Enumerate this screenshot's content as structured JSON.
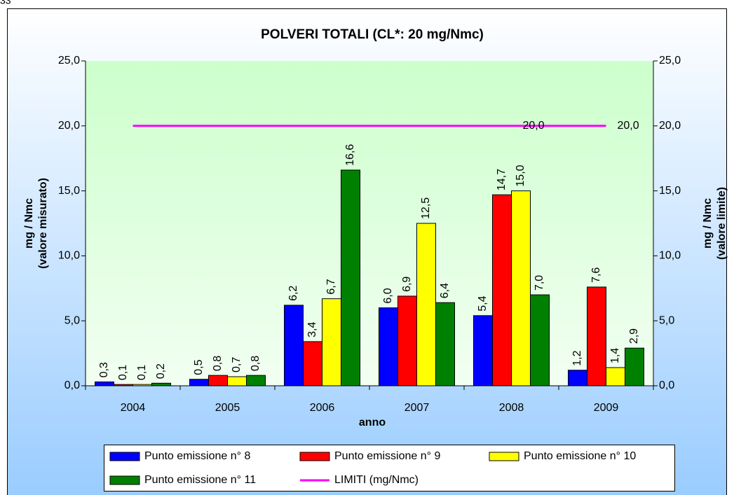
{
  "page_number": "33",
  "chart_data": {
    "type": "bar",
    "title": "POLVERI TOTALI (CL*: 20 mg/Nmc)",
    "x_label": "anno",
    "y_label": [
      "mg / Nmc",
      "(valore misurato)"
    ],
    "y2_label": [
      "mg / Nmc",
      "(valore limite)"
    ],
    "categories": [
      "2004",
      "2005",
      "2006",
      "2007",
      "2008",
      "2009"
    ],
    "series": [
      {
        "name": "Punto emissione n° 8",
        "color": "#0000ff",
        "values": [
          0.3,
          0.5,
          6.2,
          6.0,
          5.4,
          1.2
        ],
        "value_labels": [
          "0,3",
          "0,5",
          "6,2",
          "6,0",
          "5,4",
          "1,2"
        ]
      },
      {
        "name": "Punto emissione n° 9",
        "color": "#ff0000",
        "values": [
          0.1,
          0.8,
          3.4,
          6.9,
          14.7,
          7.6
        ],
        "value_labels": [
          "0,1",
          "0,8",
          "3,4",
          "6,9",
          "14,7",
          "7,6"
        ]
      },
      {
        "name": "Punto emissione n° 10",
        "color": "#ffff00",
        "values": [
          0.1,
          0.7,
          6.7,
          12.5,
          15.0,
          1.4
        ],
        "value_labels": [
          "0,1",
          "0,7",
          "6,7",
          "12,5",
          "15,0",
          "1,4"
        ]
      },
      {
        "name": "Punto emissione n° 11",
        "color": "#008000",
        "values": [
          0.2,
          0.8,
          16.6,
          6.4,
          7.0,
          2.9
        ],
        "value_labels": [
          "0,2",
          "0,8",
          "16,6",
          "6,4",
          "7,0",
          "2,9"
        ]
      },
      {
        "name": "LIMITI (mg/Nmc)",
        "type": "line",
        "axis": "y2",
        "color": "#ff00ff",
        "values": [
          20,
          20,
          20,
          20,
          20,
          20
        ],
        "value_labels": [
          null,
          null,
          null,
          null,
          "20,0",
          "20,0"
        ]
      }
    ],
    "ylim": [
      0,
      25
    ],
    "yticks": [
      {
        "value": 0,
        "label": "0,0"
      },
      {
        "value": 5,
        "label": "5,0"
      },
      {
        "value": 10,
        "label": "10,0"
      },
      {
        "value": 15,
        "label": "15,0"
      },
      {
        "value": 20,
        "label": "20,0"
      },
      {
        "value": 25,
        "label": "25,0"
      }
    ],
    "y2lim": [
      0,
      25
    ],
    "y2ticks": [
      {
        "value": 0,
        "label": "0,0"
      },
      {
        "value": 5,
        "label": "5,0"
      },
      {
        "value": 10,
        "label": "10,0"
      },
      {
        "value": 15,
        "label": "15,0"
      },
      {
        "value": 20,
        "label": "20,0"
      },
      {
        "value": 25,
        "label": "25,0"
      }
    ],
    "legend": "bottom"
  }
}
